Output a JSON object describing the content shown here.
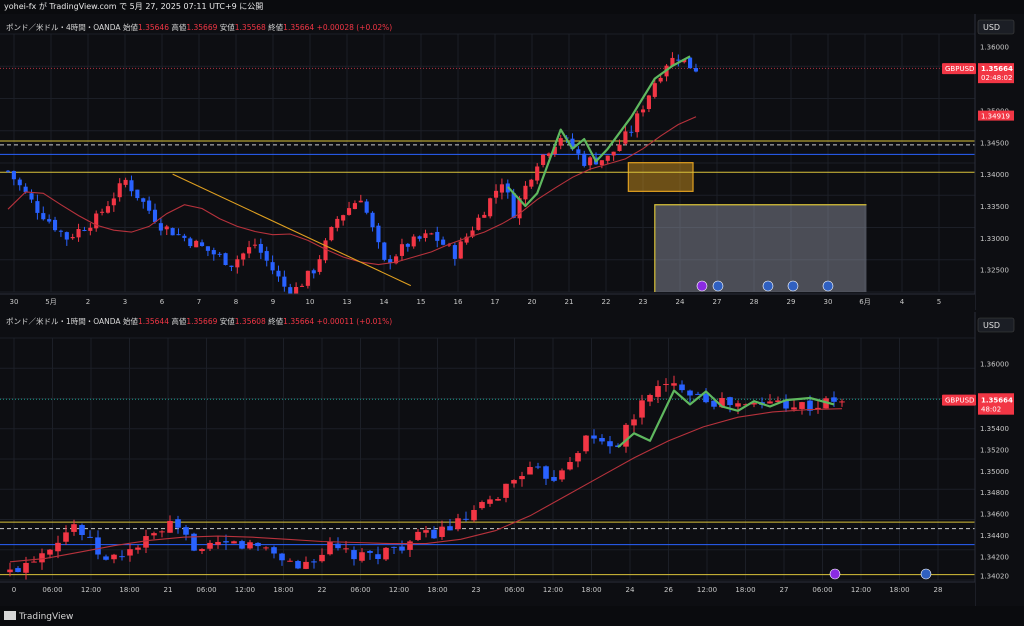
{
  "header": {
    "attribution": "yohei-fx が TradingView.com で 5月 27, 2025 07:11 UTC+9 に公開"
  },
  "footer": {
    "brand": "TradingView"
  },
  "colors": {
    "up": "#f23645",
    "down": "#2962ff",
    "ma": "#b7323c",
    "wave": "#5fb85f",
    "trend": "#e0a020",
    "zone": "#e0a020",
    "hline_yellow": "#d9c23a",
    "hline_blue": "#2962ff",
    "hline_dash": "#cccccc",
    "price_tag": "#f23645",
    "grid": "#1c1f27"
  },
  "chart_data": [
    {
      "type": "candlestick",
      "legend": {
        "symbol": "ポンド／米ドル・4時間・OANDA",
        "open_label": "始値",
        "open": "1.35646",
        "high_label": "高値",
        "high": "1.35669",
        "low_label": "安値",
        "low": "1.35568",
        "close_label": "終値",
        "close": "1.35664",
        "change": "+0.00028 (+0.02%)"
      },
      "currency": "USD",
      "symbol_tag": "GBPUSD",
      "price_tag": "1.35664",
      "countdown": "02:48:02",
      "level_tag": "1.34919",
      "ylim": [
        1.3215,
        1.362
      ],
      "y_ticks": [
        "1.36000",
        "1.35000",
        "1.34500",
        "1.34000",
        "1.33500",
        "1.33000",
        "1.32500"
      ],
      "x_ticks": [
        "30",
        "5月",
        "2",
        "3",
        "6",
        "7",
        "8",
        "9",
        "10",
        "13",
        "14",
        "15",
        "16",
        "17",
        "20",
        "21",
        "22",
        "23",
        "24",
        "27",
        "28",
        "29",
        "30",
        "6月",
        "4",
        "5"
      ],
      "hlines_yellow": [
        1.3452,
        1.3403
      ],
      "hlines_dashed": [
        1.3446
      ],
      "hlines_blue": [
        1.3431
      ],
      "tag_line": 1.3566,
      "ma_level": [
        1.3345,
        1.3372,
        1.337,
        1.3352,
        1.3335,
        1.332,
        1.3312,
        1.3309,
        1.3318,
        1.3338,
        1.3352,
        1.3346,
        1.333,
        1.3318,
        1.331,
        1.3305,
        1.3306,
        1.3296,
        1.3282,
        1.327,
        1.3262,
        1.3258,
        1.3262,
        1.327,
        1.3278,
        1.329,
        1.33,
        1.3309,
        1.3322,
        1.3338,
        1.336,
        1.3378,
        1.3395,
        1.3408,
        1.3416,
        1.3424,
        1.344,
        1.346,
        1.3478,
        1.349
      ],
      "anchors": [
        [
          0,
          1.3405
        ],
        [
          5,
          1.3345
        ],
        [
          10,
          1.33
        ],
        [
          15,
          1.333
        ],
        [
          20,
          1.339
        ],
        [
          26,
          1.332
        ],
        [
          32,
          1.329
        ],
        [
          38,
          1.326
        ],
        [
          42,
          1.329
        ],
        [
          48,
          1.321
        ],
        [
          52,
          1.325
        ],
        [
          56,
          1.333
        ],
        [
          60,
          1.3365
        ],
        [
          64,
          1.326
        ],
        [
          68,
          1.329
        ],
        [
          72,
          1.3305
        ],
        [
          76,
          1.3275
        ],
        [
          80,
          1.333
        ],
        [
          84,
          1.339
        ],
        [
          86,
          1.334
        ],
        [
          90,
          1.342
        ],
        [
          94,
          1.346
        ],
        [
          98,
          1.342
        ],
        [
          102,
          1.3425
        ],
        [
          106,
          1.347
        ],
        [
          110,
          1.3545
        ],
        [
          112,
          1.3575
        ],
        [
          114,
          1.3585
        ],
        [
          116,
          1.357
        ],
        [
          117,
          1.3566
        ]
      ],
      "zones": [
        {
          "x0": 105.5,
          "x1": 116.5,
          "y0": 1.3418,
          "y1": 1.3373
        },
        {
          "x0": 110.0,
          "x1": 146.0,
          "y0": 1.3352,
          "y1": 1.3215
        }
      ]
    },
    {
      "type": "candlestick",
      "legend": {
        "symbol": "ポンド／米ドル・1時間・OANDA",
        "open_label": "始値",
        "open": "1.35644",
        "high_label": "高値",
        "high": "1.35669",
        "low_label": "安値",
        "low": "1.35608",
        "close_label": "終値",
        "close": "1.35664",
        "change": "+0.00011 (+0.01%)"
      },
      "currency": "USD",
      "symbol_tag": "GBPUSD",
      "price_tag": "1.35664",
      "price_tag_upper": "1.35668",
      "countdown": "48:02",
      "ylim": [
        1.3398,
        1.3624
      ],
      "y_ticks": [
        "1.36000",
        "1.35400",
        "1.35200",
        "1.35000",
        "1.34800",
        "1.34600",
        "1.34400",
        "1.34200",
        "1.34020"
      ],
      "x_ticks": [
        "0",
        "06:00",
        "12:00",
        "18:00",
        "21",
        "06:00",
        "12:00",
        "18:00",
        "22",
        "06:00",
        "12:00",
        "18:00",
        "23",
        "06:00",
        "12:00",
        "18:00",
        "24",
        "26",
        "12:00",
        "18:00",
        "27",
        "06:00",
        "12:00",
        "18:00",
        "28"
      ],
      "hlines_yellow": [
        1.3452,
        1.3403
      ],
      "hlines_dashed": [
        1.3446
      ],
      "hlines_blue": [
        1.3431
      ],
      "tag_line": 1.35668,
      "ma_level": [
        1.3415,
        1.3418,
        1.3424,
        1.343,
        1.3435,
        1.3438,
        1.3439,
        1.3438,
        1.3436,
        1.3434,
        1.3433,
        1.3432,
        1.3432,
        1.3436,
        1.3444,
        1.3458,
        1.3476,
        1.3494,
        1.3512,
        1.3528,
        1.3541,
        1.355,
        1.3555,
        1.3557,
        1.3558
      ],
      "anchors": [
        [
          0,
          1.3405
        ],
        [
          4,
          1.3425
        ],
        [
          8,
          1.345
        ],
        [
          12,
          1.3415
        ],
        [
          16,
          1.343
        ],
        [
          20,
          1.3448
        ],
        [
          24,
          1.3425
        ],
        [
          28,
          1.3432
        ],
        [
          32,
          1.3428
        ],
        [
          36,
          1.341
        ],
        [
          40,
          1.3428
        ],
        [
          44,
          1.3418
        ],
        [
          48,
          1.3428
        ],
        [
          52,
          1.344
        ],
        [
          56,
          1.345
        ],
        [
          60,
          1.347
        ],
        [
          64,
          1.35
        ],
        [
          68,
          1.3495
        ],
        [
          72,
          1.353
        ],
        [
          76,
          1.3525
        ],
        [
          80,
          1.3575
        ],
        [
          84,
          1.358
        ],
        [
          88,
          1.3565
        ],
        [
          92,
          1.356
        ],
        [
          96,
          1.3565
        ],
        [
          100,
          1.356
        ],
        [
          104,
          1.3566
        ]
      ]
    }
  ]
}
